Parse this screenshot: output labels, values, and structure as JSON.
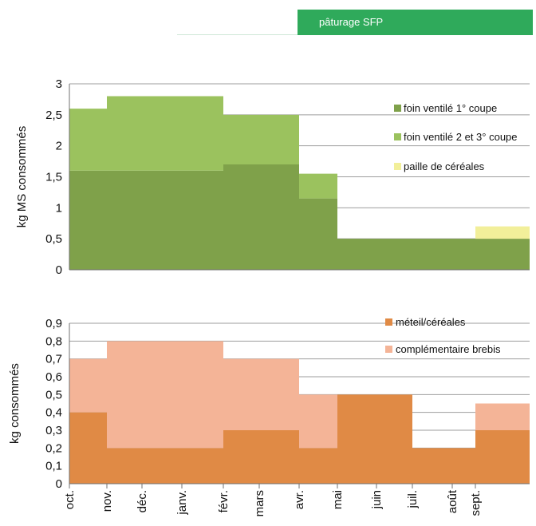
{
  "header": {
    "banner_label": "pâturage SFP",
    "banner_color": "#2faa5b"
  },
  "chart_data": [
    {
      "type": "area",
      "ylabel": "kg MS consommés",
      "ylim": [
        0,
        3
      ],
      "yticks": [
        "0",
        "0,5",
        "1",
        "1,5",
        "2",
        "2,5",
        "3"
      ],
      "ytick_values": [
        0,
        0.5,
        1,
        1.5,
        2,
        2.5,
        3
      ],
      "grid": true,
      "legend_position": "top-right",
      "x_categories": [
        "oct.",
        "nov.",
        "déc.",
        "janv.",
        "févr.",
        "mars",
        "avr.",
        "mai",
        "juin",
        "juil.",
        "août",
        "sept."
      ],
      "series": [
        {
          "name": "foin ventilé 1° coupe",
          "color": "#7fa14a",
          "values": [
            1.6,
            1.6,
            1.6,
            1.6,
            1.7,
            1.7,
            1.15,
            0.5,
            0.5,
            0.5,
            0.5,
            0.5
          ]
        },
        {
          "name": "foin ventilé 2 et 3° coupe",
          "color": "#9bc25e",
          "values": [
            1.0,
            1.2,
            1.2,
            1.2,
            0.8,
            0.8,
            0.4,
            0,
            0,
            0,
            0,
            0
          ]
        },
        {
          "name": "paille de céréales",
          "color": "#f2ef9a",
          "values": [
            0,
            0,
            0,
            0,
            0,
            0,
            0,
            0,
            0,
            0,
            0,
            0.2
          ]
        }
      ]
    },
    {
      "type": "area",
      "ylabel": "kg consommés",
      "ylim": [
        0,
        0.9
      ],
      "yticks": [
        "0",
        "0,1",
        "0,2",
        "0,3",
        "0,4",
        "0,5",
        "0,6",
        "0,7",
        "0,8",
        "0,9"
      ],
      "ytick_values": [
        0,
        0.1,
        0.2,
        0.3,
        0.4,
        0.5,
        0.6,
        0.7,
        0.8,
        0.9
      ],
      "grid": true,
      "legend_position": "top-right",
      "x_categories": [
        "oct.",
        "nov.",
        "déc.",
        "janv.",
        "févr.",
        "mars",
        "avr.",
        "mai",
        "juin",
        "juil.",
        "août",
        "sept."
      ],
      "series": [
        {
          "name": "méteil/céréales",
          "color": "#e08a45",
          "values": [
            0.4,
            0.2,
            0.2,
            0.2,
            0.3,
            0.3,
            0.2,
            0.5,
            0.5,
            0.2,
            0.2,
            0.3
          ]
        },
        {
          "name": "complémentaire brebis",
          "color": "#f4b497",
          "values": [
            0.3,
            0.6,
            0.6,
            0.6,
            0.4,
            0.4,
            0.3,
            0,
            0,
            0,
            0,
            0.15
          ]
        }
      ]
    }
  ]
}
